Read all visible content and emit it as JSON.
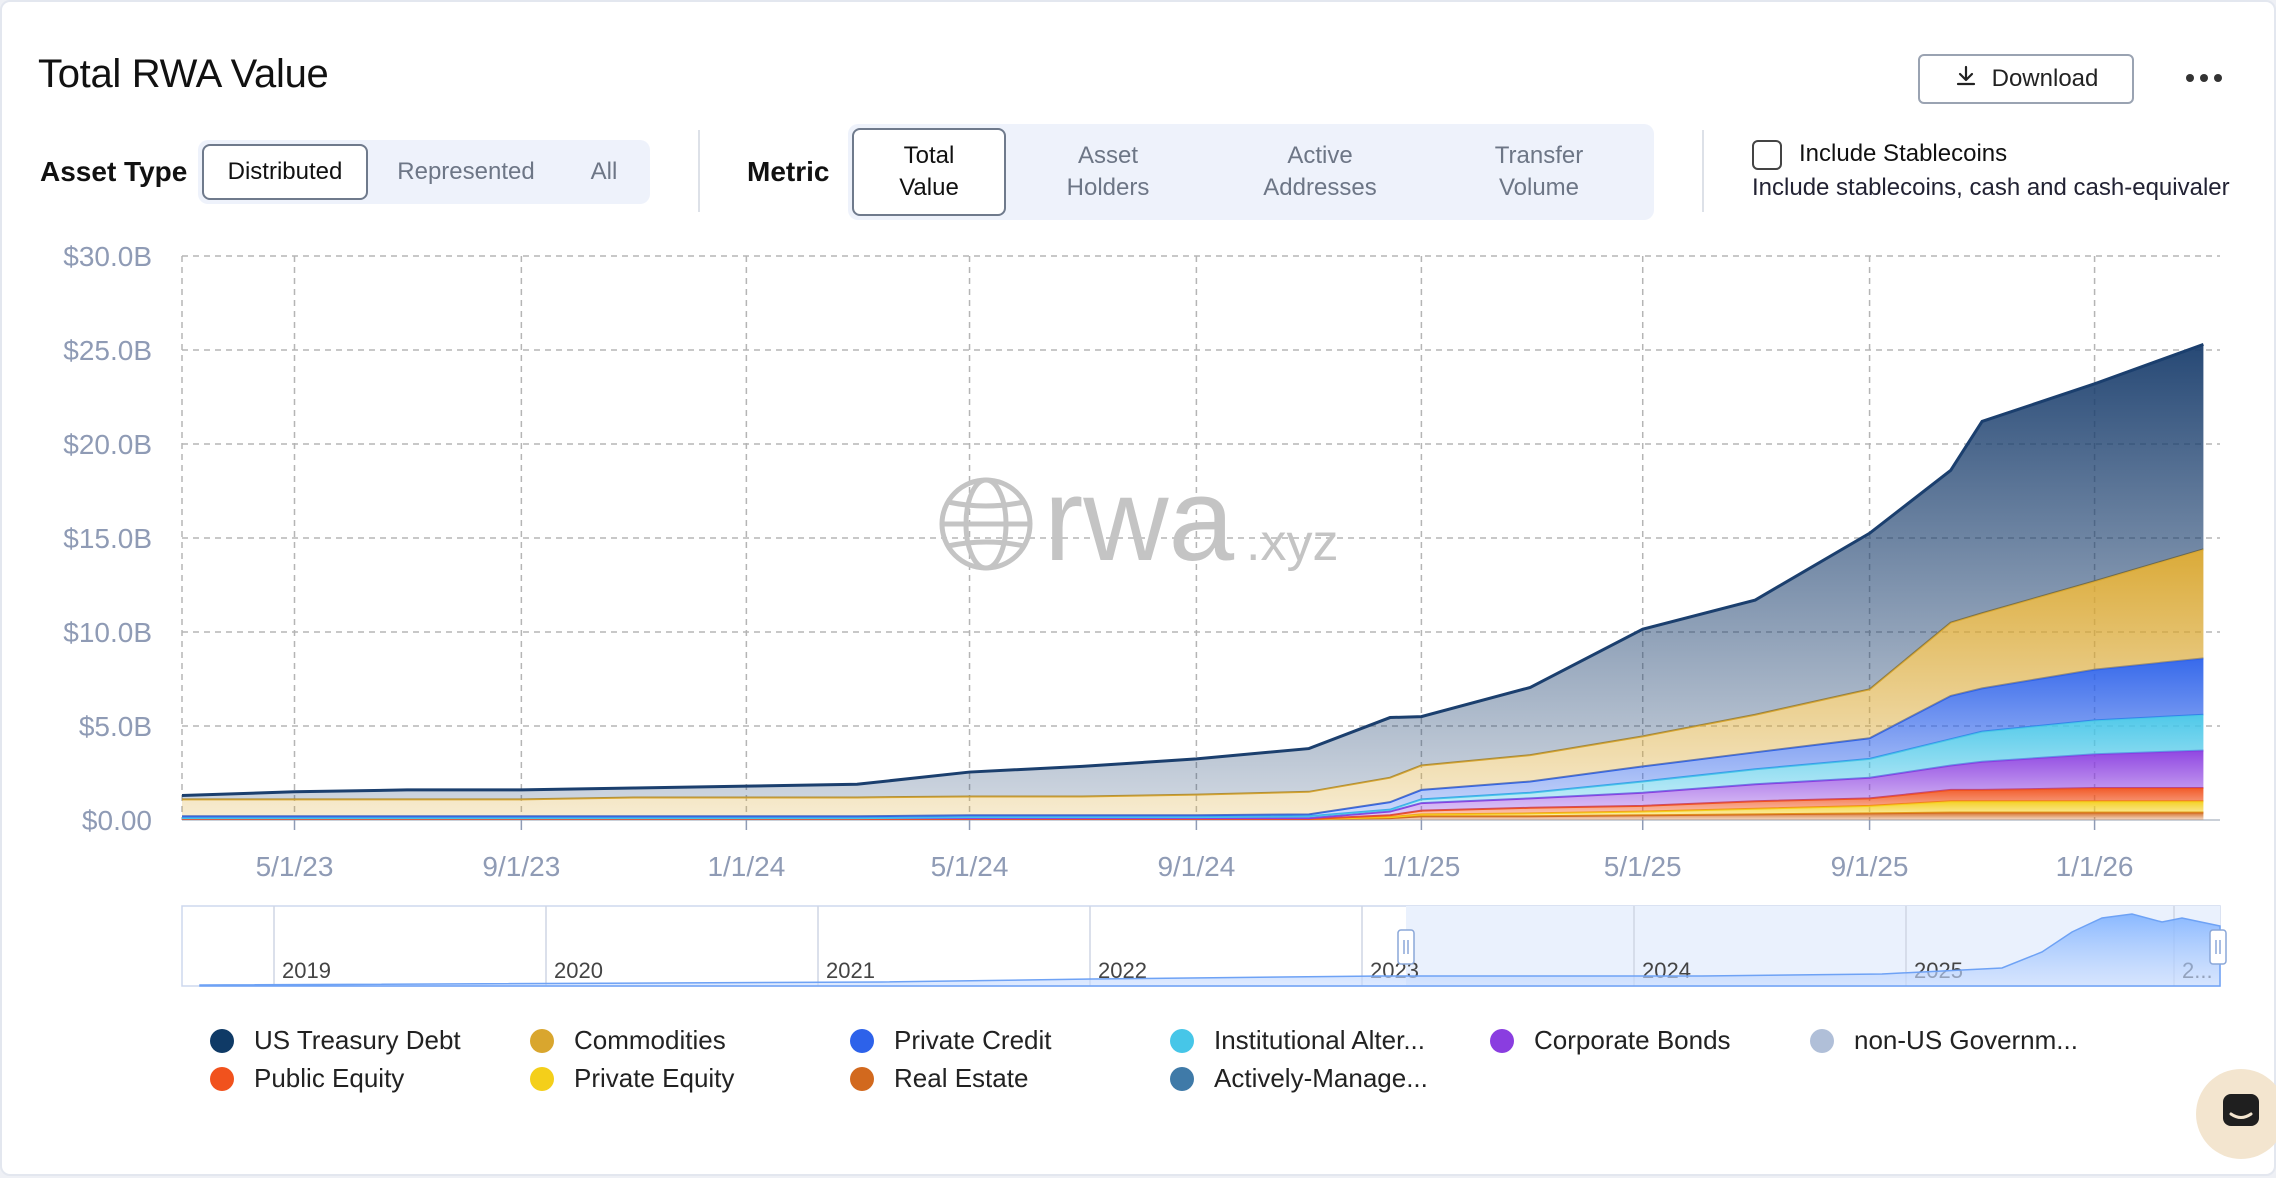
{
  "header": {
    "title": "Total RWA Value",
    "download_label": "Download"
  },
  "controls": {
    "asset_type_label": "Asset Type",
    "asset_type_options": [
      "Distributed",
      "Represented",
      "All"
    ],
    "asset_type_selected": "Distributed",
    "metric_label": "Metric",
    "metric_options": [
      "Total\nValue",
      "Asset\nHolders",
      "Active\nAddresses",
      "Transfer\nVolume"
    ],
    "metric_selected": "Total Value",
    "stablecoins_label": "Include Stablecoins",
    "stablecoins_desc": "Include stablecoins, cash and cash-equivaler",
    "stablecoins_checked": false
  },
  "watermark": {
    "main": "rwa",
    "suffix": ".xyz"
  },
  "chart_data": {
    "type": "area",
    "stacked": true,
    "y_ticks": [
      "$0.00",
      "$5.0B",
      "$10.0B",
      "$15.0B",
      "$20.0B",
      "$25.0B",
      "$30.0B"
    ],
    "ylim": [
      0,
      30
    ],
    "x_ticks": [
      "5/1/23",
      "9/1/23",
      "1/1/24",
      "5/1/24",
      "9/1/24",
      "1/1/25",
      "5/1/25",
      "9/1/25",
      "1/1/26"
    ],
    "x": [
      "3/1/23",
      "5/1/23",
      "7/1/23",
      "9/1/23",
      "11/1/23",
      "1/1/24",
      "3/1/24",
      "5/1/24",
      "7/1/24",
      "9/1/24",
      "11/1/24",
      "12/15/24",
      "1/1/25",
      "3/1/25",
      "5/1/25",
      "7/1/25",
      "9/1/25",
      "10/15/25",
      "11/1/25",
      "1/1/26",
      "3/1/26"
    ],
    "grid": true,
    "series_colors": {
      "US Treasury Debt": "#1b3f6e",
      "Commodities": "#d9a62e",
      "Private Credit": "#2d62ea",
      "Institutional Alter...": "#46c6e8",
      "Corporate Bonds": "#8a3de0",
      "Public Equity": "#f1521d",
      "Private Equity": "#f4cf1a",
      "Real Estate": "#d2691e"
    },
    "series": [
      {
        "name": "Real Estate",
        "values": [
          0.05,
          0.05,
          0.05,
          0.05,
          0.05,
          0.05,
          0.05,
          0.05,
          0.05,
          0.05,
          0.05,
          0.1,
          0.2,
          0.2,
          0.25,
          0.3,
          0.35,
          0.4,
          0.4,
          0.4,
          0.4
        ]
      },
      {
        "name": "Private Equity",
        "values": [
          0,
          0,
          0,
          0,
          0,
          0,
          0,
          0,
          0,
          0,
          0,
          0.05,
          0.1,
          0.15,
          0.2,
          0.3,
          0.4,
          0.6,
          0.6,
          0.6,
          0.6
        ]
      },
      {
        "name": "Public Equity",
        "values": [
          0,
          0,
          0,
          0,
          0,
          0,
          0,
          0,
          0,
          0,
          0,
          0.1,
          0.2,
          0.3,
          0.3,
          0.4,
          0.4,
          0.6,
          0.6,
          0.7,
          0.7
        ]
      },
      {
        "name": "Corporate Bonds",
        "values": [
          0.05,
          0.05,
          0.05,
          0.05,
          0.05,
          0.05,
          0.05,
          0.05,
          0.05,
          0.05,
          0.05,
          0.2,
          0.4,
          0.5,
          0.7,
          0.9,
          1.1,
          1.3,
          1.5,
          1.8,
          2.0
        ]
      },
      {
        "name": "Institutional Alter...",
        "values": [
          0,
          0,
          0,
          0,
          0,
          0,
          0,
          0.05,
          0.05,
          0.05,
          0.1,
          0.1,
          0.2,
          0.3,
          0.6,
          0.8,
          1.0,
          1.4,
          1.6,
          1.8,
          1.9
        ]
      },
      {
        "name": "Private Credit",
        "values": [
          0.1,
          0.1,
          0.1,
          0.1,
          0.1,
          0.1,
          0.1,
          0.1,
          0.1,
          0.1,
          0.1,
          0.4,
          0.5,
          0.6,
          0.8,
          0.9,
          1.1,
          2.3,
          2.3,
          2.7,
          3.0
        ]
      },
      {
        "name": "Commodities",
        "values": [
          0.9,
          0.9,
          0.9,
          0.9,
          1.0,
          1.0,
          1.0,
          1.0,
          1.0,
          1.1,
          1.2,
          1.3,
          1.3,
          1.4,
          1.6,
          2.0,
          2.6,
          3.9,
          4.0,
          4.7,
          5.8
        ]
      },
      {
        "name": "US Treasury Debt",
        "values": [
          0.2,
          0.4,
          0.5,
          0.5,
          0.5,
          0.6,
          0.7,
          1.3,
          1.6,
          1.9,
          2.3,
          3.2,
          2.6,
          3.6,
          5.7,
          6.1,
          8.3,
          8.1,
          10.2,
          10.5,
          10.9
        ]
      }
    ]
  },
  "navigator": {
    "years": [
      "2019",
      "2020",
      "2021",
      "2022",
      "2023",
      "2024",
      "2025",
      "2..."
    ]
  },
  "legend": [
    {
      "label": "US Treasury Debt",
      "color": "#0f3a66"
    },
    {
      "label": "Commodities",
      "color": "#d9a62e"
    },
    {
      "label": "Private Credit",
      "color": "#2d62ea"
    },
    {
      "label": "Institutional Alter...",
      "color": "#46c6e8"
    },
    {
      "label": "Corporate Bonds",
      "color": "#8a3de0"
    },
    {
      "label": "non-US Governm...",
      "color": "#b0bfd8"
    },
    {
      "label": "Public Equity",
      "color": "#f1521d"
    },
    {
      "label": "Private Equity",
      "color": "#f4cf1a"
    },
    {
      "label": "Real Estate",
      "color": "#d2691e"
    },
    {
      "label": "Actively-Manage...",
      "color": "#3f7aa8"
    }
  ],
  "icons": {
    "download": "download-icon",
    "more": "more-horizontal-icon",
    "chat": "chat-icon",
    "globe": "globe-icon"
  }
}
